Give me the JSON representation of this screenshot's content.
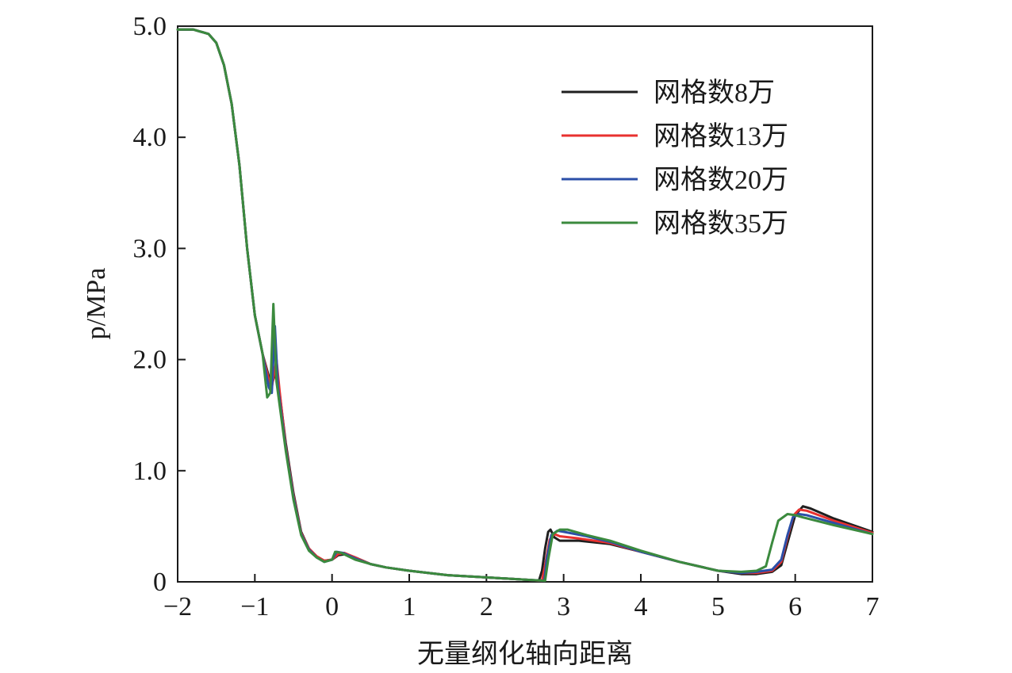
{
  "chart_data": {
    "type": "line",
    "xlabel": "无量纲化轴向距离",
    "ylabel": "p/MPa",
    "xlim": [
      -2,
      7
    ],
    "ylim": [
      0,
      5
    ],
    "x_ticks": [
      -2,
      -1,
      0,
      1,
      2,
      3,
      4,
      5,
      6,
      7
    ],
    "x_tick_labels": [
      "−2",
      "−1",
      "0",
      "1",
      "2",
      "3",
      "4",
      "5",
      "6",
      "7"
    ],
    "y_ticks": [
      0,
      1,
      2,
      3,
      4,
      5
    ],
    "y_tick_labels": [
      "0",
      "1.0",
      "2.0",
      "3.0",
      "4.0",
      "5.0"
    ],
    "grid": false,
    "legend_position": "top-right",
    "series": [
      {
        "name": "网格数8万",
        "color": "#1f1f1f",
        "points": [
          [
            -2,
            4.97
          ],
          [
            -1.8,
            4.97
          ],
          [
            -1.6,
            4.93
          ],
          [
            -1.5,
            4.85
          ],
          [
            -1.4,
            4.65
          ],
          [
            -1.3,
            4.3
          ],
          [
            -1.2,
            3.75
          ],
          [
            -1.1,
            3.0
          ],
          [
            -1.0,
            2.4
          ],
          [
            -0.9,
            2.05
          ],
          [
            -0.82,
            1.85
          ],
          [
            -0.78,
            1.78
          ],
          [
            -0.72,
            1.9
          ],
          [
            -0.68,
            1.7
          ],
          [
            -0.6,
            1.25
          ],
          [
            -0.5,
            0.8
          ],
          [
            -0.4,
            0.45
          ],
          [
            -0.3,
            0.3
          ],
          [
            -0.2,
            0.23
          ],
          [
            -0.1,
            0.19
          ],
          [
            0,
            0.2
          ],
          [
            0.08,
            0.24
          ],
          [
            0.18,
            0.25
          ],
          [
            0.3,
            0.22
          ],
          [
            0.5,
            0.16
          ],
          [
            0.7,
            0.13
          ],
          [
            1.0,
            0.1
          ],
          [
            1.5,
            0.06
          ],
          [
            2.0,
            0.04
          ],
          [
            2.5,
            0.02
          ],
          [
            2.68,
            0.01
          ],
          [
            2.72,
            0.1
          ],
          [
            2.76,
            0.3
          ],
          [
            2.8,
            0.45
          ],
          [
            2.83,
            0.47
          ],
          [
            2.88,
            0.4
          ],
          [
            2.95,
            0.37
          ],
          [
            3.2,
            0.37
          ],
          [
            3.6,
            0.34
          ],
          [
            4.0,
            0.27
          ],
          [
            4.5,
            0.18
          ],
          [
            5.0,
            0.1
          ],
          [
            5.3,
            0.07
          ],
          [
            5.5,
            0.07
          ],
          [
            5.7,
            0.09
          ],
          [
            5.82,
            0.15
          ],
          [
            5.9,
            0.35
          ],
          [
            6.0,
            0.6
          ],
          [
            6.1,
            0.68
          ],
          [
            6.2,
            0.66
          ],
          [
            6.5,
            0.57
          ],
          [
            7.0,
            0.45
          ]
        ]
      },
      {
        "name": "网格数13万",
        "color": "#e8312f",
        "points": [
          [
            -2,
            4.97
          ],
          [
            -1.8,
            4.97
          ],
          [
            -1.6,
            4.93
          ],
          [
            -1.5,
            4.85
          ],
          [
            -1.4,
            4.65
          ],
          [
            -1.3,
            4.3
          ],
          [
            -1.2,
            3.75
          ],
          [
            -1.1,
            3.0
          ],
          [
            -1.0,
            2.4
          ],
          [
            -0.9,
            2.05
          ],
          [
            -0.82,
            1.82
          ],
          [
            -0.78,
            1.75
          ],
          [
            -0.72,
            2.0
          ],
          [
            -0.68,
            1.72
          ],
          [
            -0.6,
            1.22
          ],
          [
            -0.5,
            0.78
          ],
          [
            -0.4,
            0.44
          ],
          [
            -0.3,
            0.3
          ],
          [
            -0.2,
            0.23
          ],
          [
            -0.1,
            0.19
          ],
          [
            0,
            0.2
          ],
          [
            0.08,
            0.25
          ],
          [
            0.16,
            0.26
          ],
          [
            0.3,
            0.22
          ],
          [
            0.5,
            0.16
          ],
          [
            0.7,
            0.13
          ],
          [
            1.0,
            0.1
          ],
          [
            1.5,
            0.06
          ],
          [
            2.0,
            0.04
          ],
          [
            2.5,
            0.02
          ],
          [
            2.72,
            0.01
          ],
          [
            2.76,
            0.15
          ],
          [
            2.82,
            0.38
          ],
          [
            2.88,
            0.43
          ],
          [
            2.95,
            0.41
          ],
          [
            3.2,
            0.39
          ],
          [
            3.6,
            0.35
          ],
          [
            4.0,
            0.27
          ],
          [
            4.5,
            0.18
          ],
          [
            5.0,
            0.1
          ],
          [
            5.3,
            0.08
          ],
          [
            5.5,
            0.08
          ],
          [
            5.7,
            0.1
          ],
          [
            5.82,
            0.18
          ],
          [
            5.9,
            0.4
          ],
          [
            5.98,
            0.6
          ],
          [
            6.05,
            0.65
          ],
          [
            6.15,
            0.64
          ],
          [
            6.5,
            0.55
          ],
          [
            7.0,
            0.44
          ]
        ]
      },
      {
        "name": "网格数20万",
        "color": "#2b4fa8",
        "points": [
          [
            -2,
            4.97
          ],
          [
            -1.8,
            4.97
          ],
          [
            -1.6,
            4.93
          ],
          [
            -1.5,
            4.85
          ],
          [
            -1.4,
            4.65
          ],
          [
            -1.3,
            4.3
          ],
          [
            -1.2,
            3.75
          ],
          [
            -1.1,
            3.0
          ],
          [
            -1.0,
            2.4
          ],
          [
            -0.9,
            2.05
          ],
          [
            -0.82,
            1.75
          ],
          [
            -0.78,
            1.7
          ],
          [
            -0.74,
            2.3
          ],
          [
            -0.7,
            1.75
          ],
          [
            -0.6,
            1.2
          ],
          [
            -0.5,
            0.76
          ],
          [
            -0.4,
            0.43
          ],
          [
            -0.3,
            0.29
          ],
          [
            -0.2,
            0.22
          ],
          [
            -0.1,
            0.18
          ],
          [
            0,
            0.2
          ],
          [
            0.06,
            0.27
          ],
          [
            0.14,
            0.26
          ],
          [
            0.3,
            0.21
          ],
          [
            0.5,
            0.16
          ],
          [
            0.7,
            0.13
          ],
          [
            1.0,
            0.1
          ],
          [
            1.5,
            0.06
          ],
          [
            2.0,
            0.04
          ],
          [
            2.5,
            0.02
          ],
          [
            2.75,
            0.01
          ],
          [
            2.78,
            0.2
          ],
          [
            2.84,
            0.42
          ],
          [
            2.92,
            0.46
          ],
          [
            3.0,
            0.45
          ],
          [
            3.3,
            0.41
          ],
          [
            3.6,
            0.36
          ],
          [
            4.0,
            0.27
          ],
          [
            4.5,
            0.18
          ],
          [
            5.0,
            0.1
          ],
          [
            5.3,
            0.08
          ],
          [
            5.5,
            0.09
          ],
          [
            5.7,
            0.11
          ],
          [
            5.82,
            0.2
          ],
          [
            5.9,
            0.42
          ],
          [
            5.97,
            0.58
          ],
          [
            6.05,
            0.61
          ],
          [
            6.15,
            0.6
          ],
          [
            6.5,
            0.53
          ],
          [
            7.0,
            0.43
          ]
        ]
      },
      {
        "name": "网格数35万",
        "color": "#3b8a3e",
        "points": [
          [
            -2,
            4.97
          ],
          [
            -1.8,
            4.97
          ],
          [
            -1.6,
            4.93
          ],
          [
            -1.5,
            4.85
          ],
          [
            -1.4,
            4.65
          ],
          [
            -1.3,
            4.3
          ],
          [
            -1.2,
            3.75
          ],
          [
            -1.1,
            3.0
          ],
          [
            -1.0,
            2.4
          ],
          [
            -0.9,
            2.05
          ],
          [
            -0.84,
            1.66
          ],
          [
            -0.8,
            1.7
          ],
          [
            -0.76,
            2.5
          ],
          [
            -0.72,
            1.8
          ],
          [
            -0.6,
            1.18
          ],
          [
            -0.5,
            0.74
          ],
          [
            -0.4,
            0.42
          ],
          [
            -0.3,
            0.28
          ],
          [
            -0.2,
            0.22
          ],
          [
            -0.1,
            0.18
          ],
          [
            0,
            0.2
          ],
          [
            0.04,
            0.27
          ],
          [
            0.12,
            0.26
          ],
          [
            0.3,
            0.2
          ],
          [
            0.5,
            0.16
          ],
          [
            0.7,
            0.13
          ],
          [
            1.0,
            0.1
          ],
          [
            1.5,
            0.06
          ],
          [
            2.0,
            0.04
          ],
          [
            2.5,
            0.02
          ],
          [
            2.76,
            0.01
          ],
          [
            2.8,
            0.2
          ],
          [
            2.86,
            0.43
          ],
          [
            2.95,
            0.47
          ],
          [
            3.05,
            0.47
          ],
          [
            3.3,
            0.42
          ],
          [
            3.6,
            0.37
          ],
          [
            4.0,
            0.28
          ],
          [
            4.5,
            0.18
          ],
          [
            5.0,
            0.1
          ],
          [
            5.3,
            0.09
          ],
          [
            5.5,
            0.1
          ],
          [
            5.62,
            0.14
          ],
          [
            5.7,
            0.35
          ],
          [
            5.78,
            0.55
          ],
          [
            5.9,
            0.61
          ],
          [
            6.0,
            0.6
          ],
          [
            6.1,
            0.58
          ],
          [
            6.5,
            0.51
          ],
          [
            7.0,
            0.43
          ]
        ]
      }
    ]
  }
}
